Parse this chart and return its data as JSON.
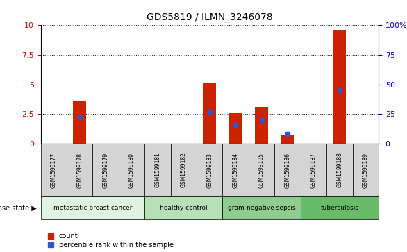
{
  "title": "GDS5819 / ILMN_3246078",
  "samples": [
    "GSM1599177",
    "GSM1599178",
    "GSM1599179",
    "GSM1599180",
    "GSM1599181",
    "GSM1599182",
    "GSM1599183",
    "GSM1599184",
    "GSM1599185",
    "GSM1599186",
    "GSM1599187",
    "GSM1599188",
    "GSM1599189"
  ],
  "counts": [
    0,
    3.6,
    0,
    0,
    0,
    0,
    5.1,
    2.6,
    3.1,
    0.7,
    0,
    9.6,
    0
  ],
  "percentile_ranks": [
    0,
    22,
    0,
    0,
    0,
    0,
    27,
    16,
    20,
    8,
    0,
    45,
    0
  ],
  "ylim_left": [
    0,
    10
  ],
  "ylim_right": [
    0,
    100
  ],
  "yticks_left": [
    0,
    2.5,
    5.0,
    7.5,
    10
  ],
  "yticks_right": [
    0,
    25,
    50,
    75,
    100
  ],
  "bar_color": "#cc2200",
  "marker_color": "#3355cc",
  "bg_color_plot": "#ffffff",
  "bg_color_sample": "#d4d4d4",
  "disease_groups": [
    {
      "label": "metastatic breast cancer",
      "start": 0,
      "end": 3,
      "color": "#e0f2e0"
    },
    {
      "label": "healthy control",
      "start": 4,
      "end": 6,
      "color": "#b8e0b8"
    },
    {
      "label": "gram-negative sepsis",
      "start": 7,
      "end": 9,
      "color": "#90cc90"
    },
    {
      "label": "tuberculosis",
      "start": 10,
      "end": 12,
      "color": "#68bb68"
    }
  ],
  "legend_count_label": "count",
  "legend_percentile_label": "percentile rank within the sample",
  "disease_state_label": "disease state",
  "left_tick_color": "#cc0000",
  "right_tick_color": "#0000cc"
}
